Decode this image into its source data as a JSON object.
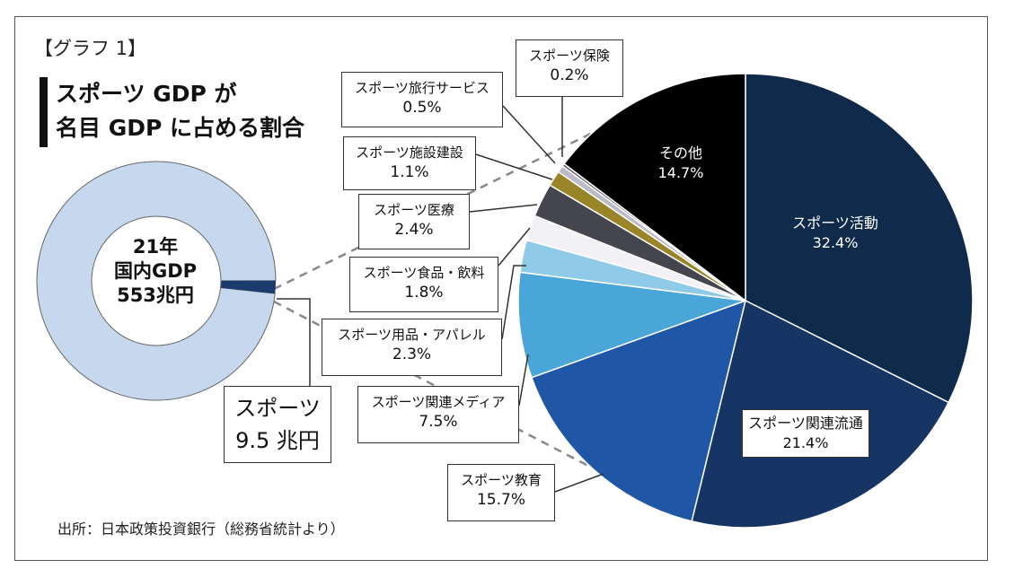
{
  "graph_label": "【グラフ 1】",
  "title": {
    "line1": "スポーツ GDP が",
    "line2": "名目 GDP に占める割合"
  },
  "source": "出所：日本政策投資銀行（総務省統計より）",
  "donut": {
    "center_line1": "21年",
    "center_line2": "国内GDP",
    "center_line3": "553兆円",
    "color": "#c6d8ee"
  },
  "sports_callout": {
    "line1": "スポーツ",
    "line2": "9.5 兆円"
  },
  "chart_data": [
    {
      "type": "pie",
      "title": "",
      "slices": [
        {
          "label": "国内GDP",
          "value": 543.5,
          "color": "#c6d8ee"
        },
        {
          "label": "スポーツ",
          "value": 9.5,
          "color": "#1b3a6e"
        }
      ]
    },
    {
      "type": "pie",
      "title": "",
      "slices": [
        {
          "label": "スポーツ活動",
          "value": 32.4,
          "pct": "32.4%",
          "color": "#0f2a4a"
        },
        {
          "label": "スポーツ関連流通",
          "value": 21.4,
          "pct": "21.4%",
          "color": "#173564"
        },
        {
          "label": "スポーツ教育",
          "value": 15.7,
          "pct": "15.7%",
          "color": "#1f57a6"
        },
        {
          "label": "スポーツ関連メディア",
          "value": 7.5,
          "pct": "7.5%",
          "color": "#4aa6d8"
        },
        {
          "label": "スポーツ用品・アパレル",
          "value": 2.3,
          "pct": "2.3%",
          "color": "#8fcbe8"
        },
        {
          "label": "スポーツ食品・飲料",
          "value": 1.8,
          "pct": "1.8%",
          "color": "#f2f2f6"
        },
        {
          "label": "スポーツ医療",
          "value": 2.4,
          "pct": "2.4%",
          "color": "#45454f"
        },
        {
          "label": "スポーツ施設建設",
          "value": 1.1,
          "pct": "1.1%",
          "color": "#9a8428"
        },
        {
          "label": "スポーツ旅行サービス",
          "value": 0.5,
          "pct": "0.5%",
          "color": "#bcbcc8"
        },
        {
          "label": "スポーツ保険",
          "value": 0.2,
          "pct": "0.2%",
          "color": "#5a5a6a"
        },
        {
          "label": "その他",
          "value": 14.7,
          "pct": "14.7%",
          "color": "#000000"
        }
      ]
    }
  ]
}
